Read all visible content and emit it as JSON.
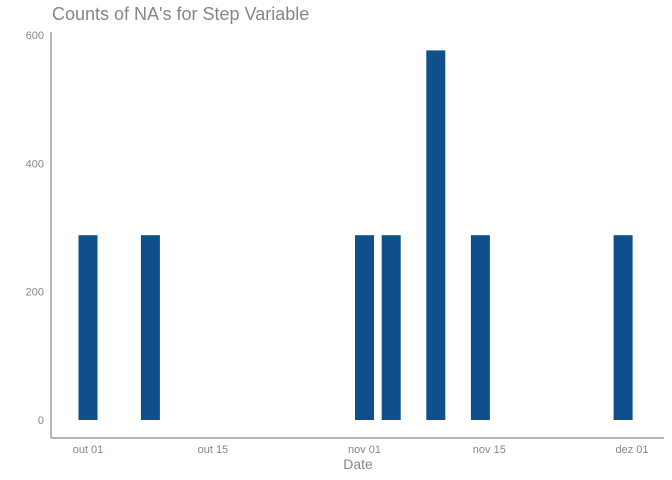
{
  "chart_data": {
    "type": "bar",
    "title": "Counts of NA's for Step Variable",
    "xlabel": "Date",
    "ylabel": "",
    "ylim": [
      0,
      600
    ],
    "yticks": [
      "0",
      "200",
      "400",
      "600"
    ],
    "xticks": [
      {
        "label": "out 01",
        "date": "2012-10-01"
      },
      {
        "label": "out 15",
        "date": "2012-10-15"
      },
      {
        "label": "nov 01",
        "date": "2012-11-01"
      },
      {
        "label": "nov 15",
        "date": "2012-11-15"
      },
      {
        "label": "dez 01",
        "date": "2012-12-01"
      }
    ],
    "x": [
      "2012-10-01",
      "2012-10-08",
      "2012-11-01",
      "2012-11-04",
      "2012-11-09",
      "2012-11-10",
      "2012-11-14",
      "2012-11-30"
    ],
    "values": [
      288,
      288,
      288,
      288,
      288,
      288,
      288,
      288
    ],
    "bars": [
      {
        "date": "2012-10-01",
        "value": 288
      },
      {
        "date": "2012-10-08",
        "value": 288
      },
      {
        "date": "2012-11-01",
        "value": 288
      },
      {
        "date": "2012-11-04",
        "value": 288
      },
      {
        "date": "2012-11-09",
        "value": 576
      },
      {
        "date": "2012-11-14",
        "value": 288
      },
      {
        "date": "2012-11-30",
        "value": 288
      }
    ],
    "bar_color": "#0f4f8c",
    "axis_color": "#8a8580",
    "grid": false
  }
}
